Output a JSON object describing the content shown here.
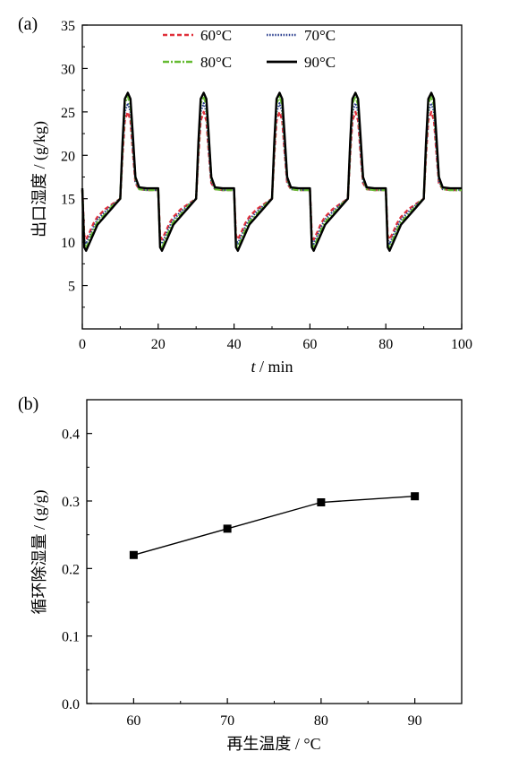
{
  "chart_data": [
    {
      "type": "line",
      "panel_label": "(a)",
      "xlabel_var": "t",
      "xlabel_unit": " / min",
      "ylabel": "出口湿度 / (g/kg)",
      "xlim": [
        0,
        100
      ],
      "ylim": [
        0,
        35
      ],
      "xticks": [
        0,
        20,
        40,
        60,
        80,
        100
      ],
      "yticks": [
        5,
        10,
        15,
        20,
        25,
        30,
        35
      ],
      "legend_position": "top",
      "series": [
        {
          "name": "60°C",
          "color": "#e0303a",
          "style": "dashed",
          "min": 10.3,
          "plateau_start": 13.8,
          "plateau_end": 15.0,
          "peak": 25.0,
          "high_plateau": 16.0,
          "x": [
            0,
            0.5,
            1,
            2,
            3,
            4,
            6,
            8,
            10,
            10.6,
            11.2,
            12,
            12.7,
            13.3,
            14,
            15,
            17,
            20
          ],
          "y": [
            16,
            10.8,
            10.3,
            11.2,
            12.2,
            12.9,
            13.8,
            14.4,
            15.0,
            20,
            24,
            25,
            24,
            20.5,
            16.8,
            16.1,
            16.0,
            16.0
          ]
        },
        {
          "name": "70°C",
          "color": "#2b3f8f",
          "style": "dotted",
          "min": 9.8,
          "plateau_start": 13.5,
          "plateau_end": 15.0,
          "peak": 26.0,
          "high_plateau": 16.0,
          "x": [
            0,
            0.5,
            1,
            2,
            3,
            4,
            6,
            8,
            10,
            10.6,
            11.2,
            12,
            12.7,
            13.3,
            14,
            15,
            17,
            20
          ],
          "y": [
            16,
            10.3,
            9.8,
            10.8,
            11.8,
            12.6,
            13.5,
            14.3,
            15.0,
            20.5,
            25,
            26,
            25,
            21,
            17,
            16.1,
            16.0,
            16.0
          ]
        },
        {
          "name": "80°C",
          "color": "#66bb33",
          "style": "dashdot",
          "min": 9.3,
          "plateau_start": 13.2,
          "plateau_end": 15.0,
          "peak": 26.8,
          "high_plateau": 16.0,
          "x": [
            0,
            0.5,
            1,
            2,
            3,
            4,
            6,
            8,
            10,
            10.6,
            11.2,
            12,
            12.7,
            13.3,
            14,
            15,
            17,
            20
          ],
          "y": [
            16,
            9.8,
            9.3,
            10.4,
            11.4,
            12.3,
            13.2,
            14.2,
            15.0,
            21,
            26,
            26.8,
            25.8,
            22,
            17.4,
            16.1,
            16.0,
            16.0
          ]
        },
        {
          "name": "90°C",
          "color": "#000000",
          "style": "solid",
          "min": 9.0,
          "plateau_start": 13.0,
          "plateau_end": 15.0,
          "peak": 27.2,
          "high_plateau": 16.2,
          "x": [
            0,
            0.5,
            1,
            2,
            3,
            4,
            6,
            8,
            10,
            10.6,
            11.2,
            12,
            12.7,
            13.3,
            14,
            15,
            17,
            20
          ],
          "y": [
            16.2,
            9.4,
            9.0,
            10.0,
            11.0,
            12.0,
            13.0,
            14.0,
            15.0,
            21.5,
            26.5,
            27.2,
            26.5,
            22.5,
            17.5,
            16.3,
            16.2,
            16.2
          ]
        }
      ],
      "cycle_period": 20,
      "cycles": 5
    },
    {
      "type": "line",
      "panel_label": "(b)",
      "xlabel": "再生温度 / °C",
      "ylabel": "循环除湿量 / (g/g)",
      "xlim": [
        55,
        95
      ],
      "ylim": [
        0,
        0.45
      ],
      "xticks": [
        60,
        70,
        80,
        90
      ],
      "ytick_labels": [
        "0.0",
        "0.1",
        "0.2",
        "0.3",
        "0.4"
      ],
      "yticks": [
        0,
        0.1,
        0.2,
        0.3,
        0.4
      ],
      "marker": "square",
      "x": [
        60,
        70,
        80,
        90
      ],
      "y": [
        0.22,
        0.259,
        0.298,
        0.307
      ]
    }
  ]
}
